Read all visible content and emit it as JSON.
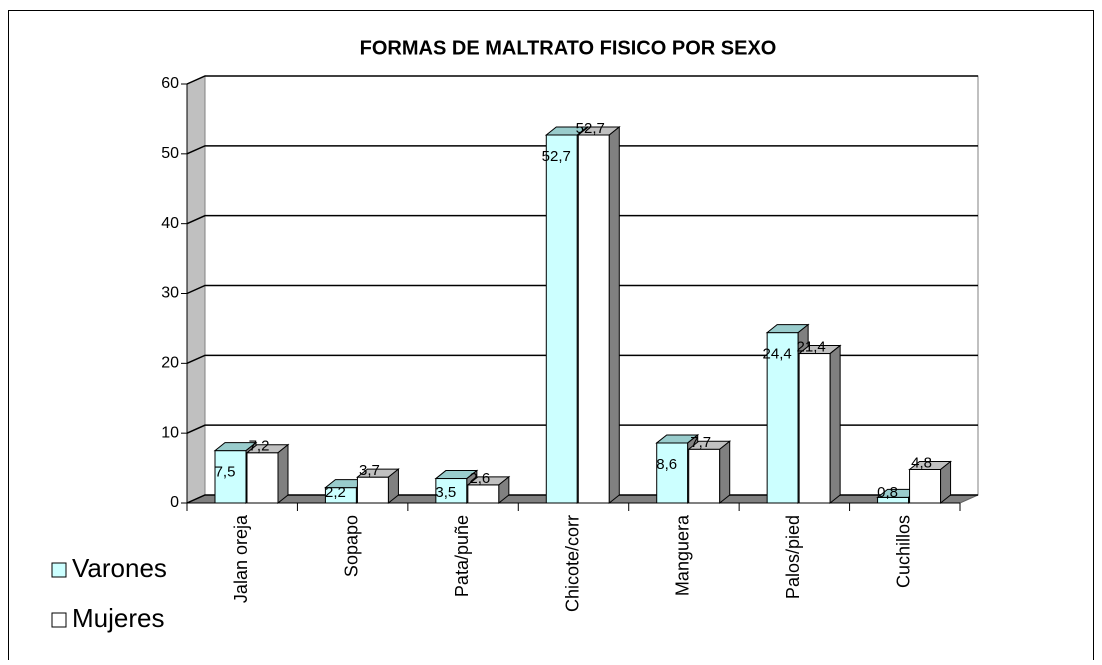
{
  "chart_data": {
    "type": "bar3d",
    "title": "FORMAS DE MALTRATO FISICO POR SEXO",
    "categories": [
      "Jalan oreja",
      "Sopapo",
      "Pata/puñe",
      "Chicote/corr",
      "Manguera",
      "Palos/pied",
      "Cuchillos"
    ],
    "series": [
      {
        "name": "Varones",
        "color": "#ccffff",
        "values": [
          7.5,
          2.2,
          3.5,
          52.7,
          8.6,
          24.4,
          0.8
        ],
        "value_labels": [
          "7,5",
          "2,2",
          "3,5",
          "52,7",
          "8,6",
          "24,4",
          "0,8"
        ]
      },
      {
        "name": "Mujeres",
        "color": "#ffffff",
        "values": [
          7.2,
          3.7,
          2.6,
          52.7,
          7.7,
          21.4,
          4.8
        ],
        "value_labels": [
          "7,2",
          "3,7",
          "2,6",
          "52,7",
          "7,7",
          "21,4",
          "4,8"
        ]
      }
    ],
    "ylim": [
      0,
      60
    ],
    "yticks": [
      0,
      10,
      20,
      30,
      40,
      50,
      60
    ],
    "grid": true,
    "legend": "bottom-left"
  }
}
